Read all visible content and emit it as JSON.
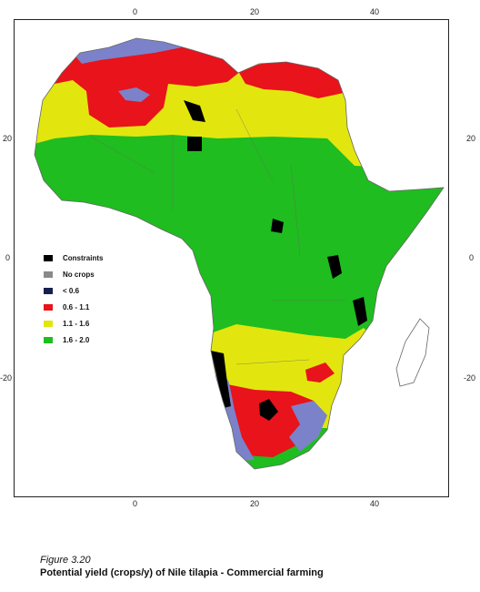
{
  "axes": {
    "top_ticks": [
      "0",
      "20",
      "40"
    ],
    "bottom_ticks": [
      "0",
      "20",
      "40"
    ],
    "left_ticks": [
      "20",
      "0",
      "-20"
    ],
    "right_ticks": [
      "20",
      "0",
      "-20"
    ]
  },
  "legend": [
    {
      "label": "Constraints",
      "color": "#000000"
    },
    {
      "label": "No crops",
      "color": "#8a8a8a"
    },
    {
      "label": "< 0.6",
      "color": "#16204e"
    },
    {
      "label": "0.6 - 1.1",
      "color": "#e8131b"
    },
    {
      "label": "1.1 - 1.6",
      "color": "#e2e60e"
    },
    {
      "label": "1.6 - 2.0",
      "color": "#1fbd1f"
    }
  ],
  "colors": {
    "red": "#e8131b",
    "yellow": "#e2e60e",
    "green": "#1fbd1f",
    "blue": "#7b82c9",
    "black": "#000000",
    "border_line": "#666666"
  },
  "caption": {
    "figure": "Figure 3.20",
    "title": "Potential yield (crops/y) of Nile tilapia - Commercial farming"
  }
}
